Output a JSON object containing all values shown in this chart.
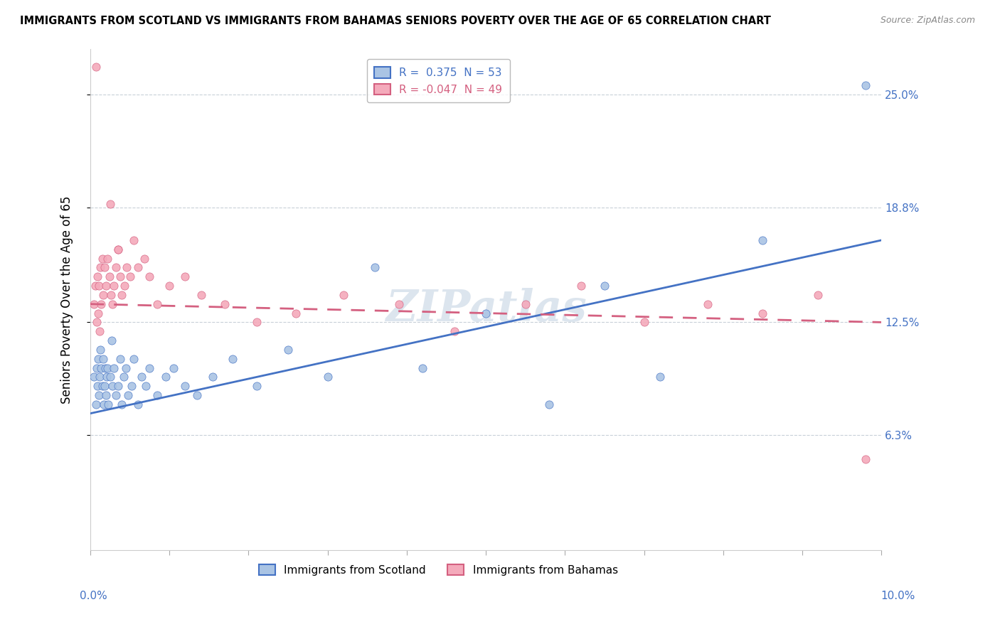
{
  "title": "IMMIGRANTS FROM SCOTLAND VS IMMIGRANTS FROM BAHAMAS SENIORS POVERTY OVER THE AGE OF 65 CORRELATION CHART",
  "source": "Source: ZipAtlas.com",
  "ylabel_values": [
    6.3,
    12.5,
    18.8,
    25.0
  ],
  "xlim": [
    0.0,
    10.0
  ],
  "ylim": [
    0.0,
    27.5
  ],
  "R_scotland": 0.375,
  "N_scotland": 53,
  "R_bahamas": -0.047,
  "N_bahamas": 49,
  "scotland_face_color": "#aac4e4",
  "scotland_edge_color": "#4472c4",
  "bahamas_face_color": "#f4aabb",
  "bahamas_edge_color": "#d46080",
  "scotland_line_color": "#4472c4",
  "bahamas_line_color": "#d46080",
  "right_label_color": "#4472c4",
  "ylabel_text": "Seniors Poverty Over the Age of 65",
  "watermark": "ZIPatlas",
  "scotland_x": [
    0.05,
    0.07,
    0.08,
    0.09,
    0.1,
    0.11,
    0.12,
    0.13,
    0.14,
    0.15,
    0.16,
    0.17,
    0.18,
    0.19,
    0.2,
    0.21,
    0.22,
    0.23,
    0.25,
    0.27,
    0.28,
    0.3,
    0.32,
    0.35,
    0.38,
    0.4,
    0.42,
    0.45,
    0.48,
    0.52,
    0.55,
    0.6,
    0.65,
    0.7,
    0.75,
    0.85,
    0.95,
    1.05,
    1.2,
    1.35,
    1.55,
    1.8,
    2.1,
    2.5,
    3.0,
    3.6,
    4.2,
    5.0,
    5.8,
    6.5,
    7.2,
    8.5,
    9.8
  ],
  "scotland_y": [
    9.5,
    8.0,
    10.0,
    9.0,
    10.5,
    8.5,
    9.5,
    11.0,
    10.0,
    9.0,
    10.5,
    8.0,
    9.0,
    10.0,
    8.5,
    9.5,
    10.0,
    8.0,
    9.5,
    11.5,
    9.0,
    10.0,
    8.5,
    9.0,
    10.5,
    8.0,
    9.5,
    10.0,
    8.5,
    9.0,
    10.5,
    8.0,
    9.5,
    9.0,
    10.0,
    8.5,
    9.5,
    10.0,
    9.0,
    8.5,
    9.5,
    10.5,
    9.0,
    11.0,
    9.5,
    15.5,
    10.0,
    13.0,
    8.0,
    14.5,
    9.5,
    17.0,
    25.5
  ],
  "bahamas_x": [
    0.05,
    0.06,
    0.08,
    0.09,
    0.1,
    0.11,
    0.12,
    0.13,
    0.14,
    0.15,
    0.16,
    0.18,
    0.2,
    0.22,
    0.24,
    0.26,
    0.28,
    0.3,
    0.32,
    0.35,
    0.38,
    0.4,
    0.43,
    0.46,
    0.5,
    0.55,
    0.6,
    0.68,
    0.75,
    0.85,
    1.0,
    1.2,
    1.4,
    1.7,
    2.1,
    2.6,
    3.2,
    3.9,
    4.6,
    5.5,
    6.2,
    7.0,
    7.8,
    8.5,
    9.2,
    9.8,
    0.07,
    0.25,
    0.35
  ],
  "bahamas_y": [
    13.5,
    14.5,
    12.5,
    15.0,
    13.0,
    14.5,
    12.0,
    15.5,
    13.5,
    16.0,
    14.0,
    15.5,
    14.5,
    16.0,
    15.0,
    14.0,
    13.5,
    14.5,
    15.5,
    16.5,
    15.0,
    14.0,
    14.5,
    15.5,
    15.0,
    17.0,
    15.5,
    16.0,
    15.0,
    13.5,
    14.5,
    15.0,
    14.0,
    13.5,
    12.5,
    13.0,
    14.0,
    13.5,
    12.0,
    13.5,
    14.5,
    12.5,
    13.5,
    13.0,
    14.0,
    5.0,
    26.5,
    19.0,
    16.5
  ],
  "trendline_scotland_x0": 0.0,
  "trendline_scotland_y0": 7.5,
  "trendline_scotland_x1": 10.0,
  "trendline_scotland_y1": 17.0,
  "trendline_bahamas_x0": 0.0,
  "trendline_bahamas_y0": 13.5,
  "trendline_bahamas_x1": 10.0,
  "trendline_bahamas_y1": 12.5
}
